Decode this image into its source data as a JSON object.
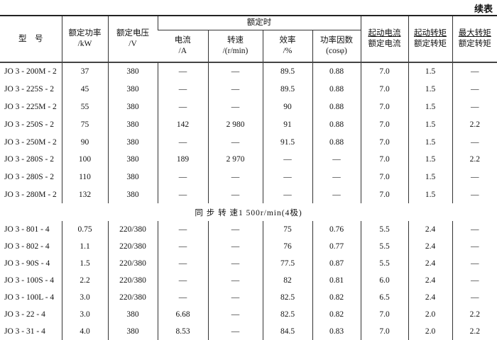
{
  "continued_label": "续表",
  "headers": {
    "model": "型　号",
    "power": [
      "额定功率",
      "/kW"
    ],
    "voltage": [
      "额定电压",
      "/V"
    ],
    "rated_group": "额定时",
    "current": [
      "电流",
      "/A"
    ],
    "speed": [
      "转速",
      "/(r/min)"
    ],
    "efficiency": [
      "效率",
      "/%"
    ],
    "pf": [
      "功率因数",
      "(cosφ)"
    ],
    "start_current": [
      "起动电流",
      "额定电流"
    ],
    "start_torque": [
      "起动转矩",
      "额定转矩"
    ],
    "max_torque": [
      "最大转矩",
      "额定转矩"
    ]
  },
  "section_label": "同 步 转 速1 500r/min(4极)",
  "rows_a": [
    [
      "JO 3 - 200M - 2",
      "37",
      "380",
      "—",
      "—",
      "89.5",
      "0.88",
      "7.0",
      "1.5",
      "—"
    ],
    [
      "JO 3 - 225S - 2",
      "45",
      "380",
      "—",
      "—",
      "89.5",
      "0.88",
      "7.0",
      "1.5",
      "—"
    ],
    [
      "JO 3 - 225M - 2",
      "55",
      "380",
      "—",
      "—",
      "90",
      "0.88",
      "7.0",
      "1.5",
      "—"
    ],
    [
      "JO 3 - 250S - 2",
      "75",
      "380",
      "142",
      "2 980",
      "91",
      "0.88",
      "7.0",
      "1.5",
      "2.2"
    ],
    [
      "JO 3 - 250M - 2",
      "90",
      "380",
      "—",
      "—",
      "91.5",
      "0.88",
      "7.0",
      "1.5",
      "—"
    ],
    [
      "JO 3 - 280S - 2",
      "100",
      "380",
      "189",
      "2 970",
      "—",
      "—",
      "7.0",
      "1.5",
      "2.2"
    ],
    [
      "JO 3 - 280S - 2",
      "110",
      "380",
      "—",
      "—",
      "—",
      "—",
      "7.0",
      "1.5",
      "—"
    ],
    [
      "JO 3 - 280M - 2",
      "132",
      "380",
      "—",
      "—",
      "—",
      "—",
      "7.0",
      "1.5",
      "—"
    ]
  ],
  "rows_b": [
    [
      "JO 3 - 801 - 4",
      "0.75",
      "220/380",
      "—",
      "—",
      "75",
      "0.76",
      "5.5",
      "2.4",
      "—"
    ],
    [
      "JO 3 - 802 - 4",
      "1.1",
      "220/380",
      "—",
      "—",
      "76",
      "0.77",
      "5.5",
      "2.4",
      "—"
    ],
    [
      "JO 3 - 90S - 4",
      "1.5",
      "220/380",
      "—",
      "—",
      "77.5",
      "0.87",
      "5.5",
      "2.4",
      "—"
    ],
    [
      "JO 3 - 100S - 4",
      "2.2",
      "220/380",
      "—",
      "—",
      "82",
      "0.81",
      "6.0",
      "2.4",
      "—"
    ],
    [
      "JO 3 - 100L - 4",
      "3.0",
      "220/380",
      "—",
      "—",
      "82.5",
      "0.82",
      "6.5",
      "2.4",
      "—"
    ],
    [
      "JO 3 - 22 - 4",
      "3.0",
      "380",
      "6.68",
      "—",
      "82.5",
      "0.82",
      "7.0",
      "2.0",
      "2.2"
    ],
    [
      "JO 3 - 31 - 4",
      "4.0",
      "380",
      "8.53",
      "—",
      "84.5",
      "0.83",
      "7.0",
      "2.0",
      "2.2"
    ]
  ]
}
